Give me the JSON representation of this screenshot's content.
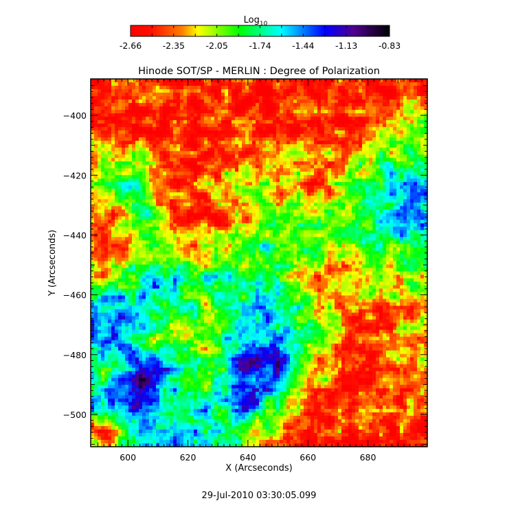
{
  "chart_data": {
    "type": "heatmap",
    "title": "Hinode SOT/SP - MERLIN : Degree of Polarization",
    "xlabel": "X (Arcseconds)",
    "ylabel": "Y (Arcseconds)",
    "xlim": [
      587.6,
      699.8
    ],
    "ylim": [
      -510.8,
      -387.8
    ],
    "xticks": [
      600,
      620,
      640,
      660,
      680
    ],
    "yticks": [
      -400,
      -420,
      -440,
      -460,
      -480,
      -500
    ],
    "grid": false,
    "colorbar": {
      "label": "Log",
      "label_sub": "10",
      "position": "top",
      "range": [
        -2.66,
        -0.83
      ],
      "ticks": [
        "-2.66",
        "-2.35",
        "-2.05",
        "-1.74",
        "-1.44",
        "-1.13",
        "-0.83"
      ],
      "colormap": [
        "#ff0000",
        "#ff1000",
        "#ff8000",
        "#ffff00",
        "#00ff00",
        "#00ffff",
        "#0000ff",
        "#500090",
        "#000000"
      ]
    },
    "approx_grid_note_columns_x": [
      593,
      604,
      616,
      627,
      638,
      649,
      660,
      672,
      683,
      694
    ],
    "approx_grid_rows_y": [
      -393,
      -403,
      -413,
      -424,
      -434,
      -444,
      -454,
      -465,
      -475,
      -485,
      -496,
      -506
    ],
    "values": [
      [
        -2.5,
        -2.5,
        -2.55,
        -2.5,
        -2.5,
        -2.55,
        -2.5,
        -2.5,
        -2.45,
        -2.4
      ],
      [
        -2.45,
        -2.5,
        -2.55,
        -2.5,
        -2.5,
        -2.5,
        -2.45,
        -2.5,
        -2.4,
        -2.1
      ],
      [
        -2.2,
        -2.3,
        -2.5,
        -2.5,
        -2.4,
        -2.3,
        -2.1,
        -2.4,
        -2.0,
        -1.9
      ],
      [
        -1.9,
        -1.8,
        -2.4,
        -2.3,
        -2.0,
        -2.2,
        -2.4,
        -2.1,
        -1.7,
        -1.6
      ],
      [
        -2.4,
        -1.9,
        -2.45,
        -2.4,
        -2.3,
        -2.0,
        -2.1,
        -1.9,
        -1.8,
        -1.5
      ],
      [
        -2.5,
        -2.0,
        -2.1,
        -2.3,
        -1.9,
        -1.8,
        -1.9,
        -2.2,
        -1.9,
        -1.8
      ],
      [
        -2.2,
        -1.7,
        -1.6,
        -1.8,
        -1.8,
        -1.9,
        -2.4,
        -2.3,
        -2.0,
        -2.0
      ],
      [
        -1.4,
        -1.5,
        -1.9,
        -2.0,
        -1.7,
        -1.5,
        -2.0,
        -2.4,
        -2.4,
        -2.3
      ],
      [
        -1.4,
        -1.8,
        -2.1,
        -2.0,
        -1.6,
        -1.25,
        -1.9,
        -2.5,
        -2.4,
        -2.3
      ],
      [
        -1.8,
        -1.1,
        -1.5,
        -2.1,
        -1.15,
        -1.1,
        -2.1,
        -2.5,
        -2.4,
        -2.3
      ],
      [
        -1.4,
        -1.2,
        -1.7,
        -1.8,
        -1.3,
        -1.8,
        -2.3,
        -2.5,
        -2.5,
        -2.4
      ],
      [
        -2.3,
        -1.4,
        -1.5,
        -1.6,
        -1.9,
        -2.2,
        -2.5,
        -2.5,
        -2.5,
        -2.5
      ]
    ]
  },
  "timestamp": "29-Jul-2010 03:30:05.099"
}
